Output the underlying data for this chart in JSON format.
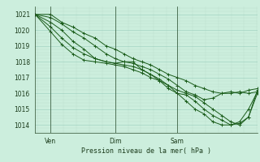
{
  "title": "",
  "xlabel": "Pression niveau de la mer( hPa )",
  "bg_color": "#cceedd",
  "grid_color_major": "#99ccbb",
  "grid_color_minor": "#bbddcc",
  "line_color": "#1a5c1a",
  "ylim": [
    1013.5,
    1021.5
  ],
  "xlim": [
    0,
    1.0
  ],
  "yticks": [
    1014,
    1015,
    1016,
    1017,
    1018,
    1019,
    1020,
    1021
  ],
  "xtick_labels": [
    "Ven",
    "Dim",
    "Sam"
  ],
  "xtick_positions": [
    0.07,
    0.36,
    0.64
  ],
  "lines": [
    {
      "x": [
        0.0,
        0.07,
        0.12,
        0.17,
        0.22,
        0.27,
        0.32,
        0.36,
        0.4,
        0.44,
        0.48,
        0.52,
        0.56,
        0.6,
        0.64,
        0.68,
        0.72,
        0.76,
        0.8,
        0.84,
        0.88,
        0.92,
        0.96,
        1.0
      ],
      "y": [
        1021.0,
        1021.0,
        1020.5,
        1020.2,
        1019.8,
        1019.5,
        1019.0,
        1018.8,
        1018.5,
        1018.2,
        1018.0,
        1017.8,
        1017.5,
        1017.2,
        1017.0,
        1016.8,
        1016.5,
        1016.3,
        1016.1,
        1016.0,
        1016.0,
        1016.1,
        1016.0,
        1016.1
      ]
    },
    {
      "x": [
        0.0,
        0.07,
        0.12,
        0.17,
        0.22,
        0.27,
        0.32,
        0.36,
        0.4,
        0.44,
        0.48,
        0.52,
        0.56,
        0.6,
        0.64,
        0.68,
        0.72,
        0.76,
        0.8,
        0.84,
        0.88,
        0.92,
        0.96,
        1.0
      ],
      "y": [
        1021.0,
        1020.8,
        1020.4,
        1019.9,
        1019.5,
        1019.0,
        1018.5,
        1018.2,
        1018.0,
        1017.9,
        1017.7,
        1017.5,
        1017.2,
        1016.9,
        1016.5,
        1016.1,
        1015.9,
        1015.6,
        1015.7,
        1016.0,
        1016.1,
        1016.0,
        1016.2,
        1016.3
      ]
    },
    {
      "x": [
        0.0,
        0.07,
        0.12,
        0.17,
        0.22,
        0.27,
        0.32,
        0.36,
        0.4,
        0.44,
        0.48,
        0.52,
        0.56,
        0.6,
        0.64,
        0.68,
        0.72,
        0.76,
        0.8,
        0.84,
        0.88,
        0.92,
        0.96,
        1.0
      ],
      "y": [
        1021.0,
        1020.5,
        1020.0,
        1019.3,
        1018.8,
        1018.2,
        1018.0,
        1017.9,
        1018.0,
        1018.0,
        1017.5,
        1017.2,
        1016.8,
        1016.3,
        1016.0,
        1015.9,
        1015.5,
        1015.0,
        1014.6,
        1014.3,
        1014.0,
        1014.1,
        1014.5,
        1016.2
      ]
    },
    {
      "x": [
        0.0,
        0.07,
        0.12,
        0.17,
        0.22,
        0.27,
        0.32,
        0.36,
        0.4,
        0.44,
        0.48,
        0.52,
        0.56,
        0.6,
        0.64,
        0.68,
        0.72,
        0.76,
        0.8,
        0.84,
        0.88,
        0.92,
        0.96,
        1.0
      ],
      "y": [
        1021.0,
        1020.2,
        1019.5,
        1018.9,
        1018.5,
        1018.2,
        1018.0,
        1017.9,
        1017.8,
        1017.7,
        1017.5,
        1017.2,
        1016.9,
        1016.5,
        1016.0,
        1015.5,
        1015.0,
        1014.7,
        1014.2,
        1014.0,
        1014.0,
        1014.2,
        1015.0,
        1016.1
      ]
    },
    {
      "x": [
        0.0,
        0.07,
        0.12,
        0.17,
        0.22,
        0.27,
        0.32,
        0.36,
        0.4,
        0.44,
        0.48,
        0.52,
        0.56,
        0.6,
        0.64,
        0.68,
        0.72,
        0.76,
        0.8,
        0.84,
        0.88,
        0.92,
        0.96,
        1.0
      ],
      "y": [
        1021.0,
        1019.9,
        1019.1,
        1018.5,
        1018.1,
        1018.0,
        1017.9,
        1017.8,
        1017.7,
        1017.5,
        1017.3,
        1017.0,
        1016.8,
        1016.5,
        1016.2,
        1016.0,
        1015.8,
        1015.4,
        1015.0,
        1014.6,
        1014.2,
        1014.0,
        1014.5,
        1016.0
      ]
    }
  ]
}
